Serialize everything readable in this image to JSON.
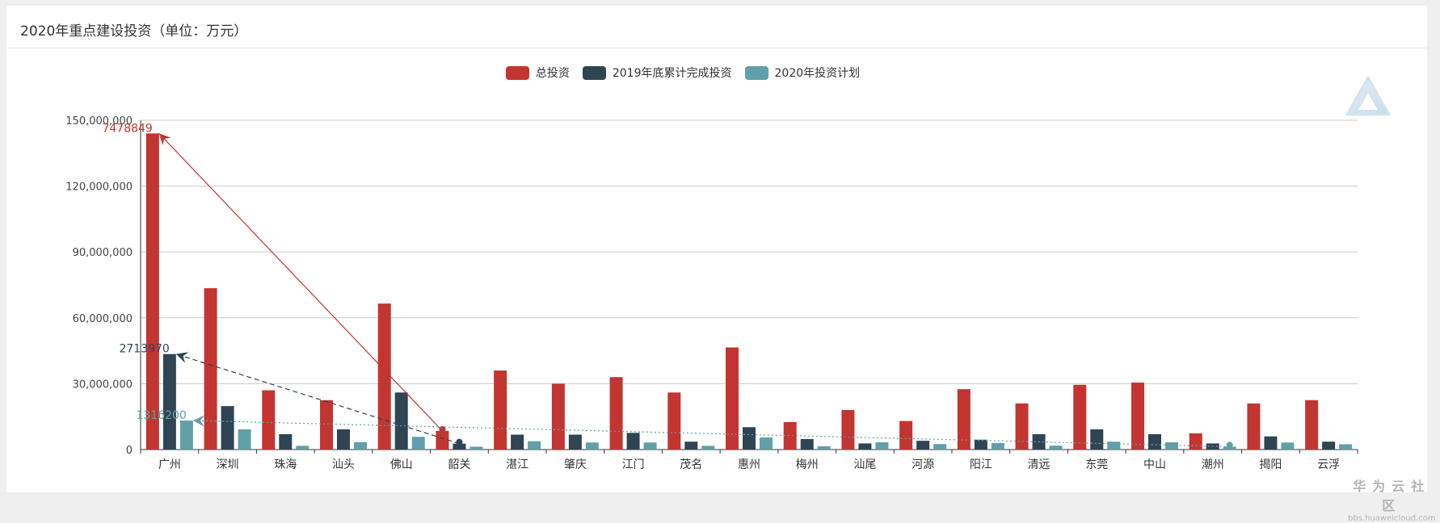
{
  "header": {
    "title": "2020年重点建设投资（单位：万元）"
  },
  "watermark": {
    "main": "华为云社区",
    "sub": "bbs.huaweicloud.com"
  },
  "colors": {
    "total": "#c23531",
    "completed": "#2f4554",
    "plan": "#61a0a8"
  },
  "chart_data": {
    "type": "bar",
    "title": "",
    "xlabel": "",
    "ylabel": "",
    "ylim": [
      0,
      150000000
    ],
    "yticks": [
      0,
      30000000,
      60000000,
      90000000,
      120000000,
      150000000
    ],
    "ytick_labels": [
      "0",
      "30,000,000",
      "60,000,000",
      "90,000,000",
      "120,000,000",
      "150,000,000"
    ],
    "grid": true,
    "legend_position": "top-center",
    "categories": [
      "广州",
      "深圳",
      "珠海",
      "汕头",
      "佛山",
      "韶关",
      "湛江",
      "肇庆",
      "江门",
      "茂名",
      "惠州",
      "梅州",
      "汕尾",
      "河源",
      "阳江",
      "清远",
      "东莞",
      "中山",
      "潮州",
      "揭阳",
      "云浮"
    ],
    "series": [
      {
        "name": "总投资",
        "values": [
          144000000,
          73500000,
          27000000,
          22500000,
          66500000,
          8500000,
          36000000,
          30000000,
          33000000,
          26000000,
          46500000,
          12500000,
          18000000,
          13000000,
          27500000,
          21000000,
          29500000,
          30500000,
          7400000,
          21000000,
          22500000
        ]
      },
      {
        "name": "2019年底累计完成投资",
        "values": [
          43500000,
          19800000,
          7000000,
          9200000,
          26000000,
          2714000,
          6800000,
          6800000,
          7600000,
          3600000,
          10200000,
          4800000,
          2800000,
          4000000,
          4500000,
          7000000,
          9200000,
          7000000,
          2800000,
          6000000,
          3600000
        ]
      },
      {
        "name": "2020年投资计划",
        "values": [
          13200000,
          9200000,
          1700000,
          3400000,
          5800000,
          1316000,
          3800000,
          3200000,
          3200000,
          1700000,
          5500000,
          1500000,
          3300000,
          2500000,
          3000000,
          1800000,
          3600000,
          3300000,
          1316000,
          3200000,
          2400000
        ]
      }
    ],
    "annotations": [
      {
        "series": "总投资",
        "label": "7478849",
        "from": "广州",
        "to": "韶关",
        "style": "solid"
      },
      {
        "series": "2019年底累计完成投资",
        "label": "2713970",
        "from": "广州",
        "to": "韶关",
        "style": "dashed"
      },
      {
        "series": "2020年投资计划",
        "label": "1316200",
        "from": "广州",
        "to": "潮州",
        "style": "dotted"
      }
    ]
  }
}
